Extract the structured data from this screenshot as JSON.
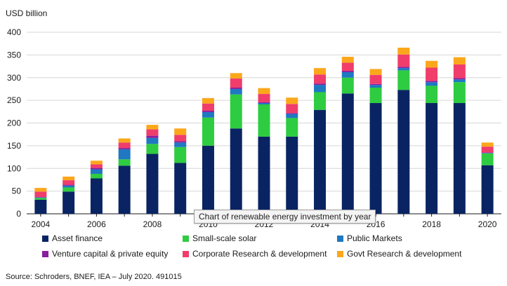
{
  "chart_data": {
    "type": "bar",
    "stacked": true,
    "ylabel": "USD billion",
    "ylim": [
      0,
      400
    ],
    "yticks": [
      "0",
      "50",
      "100",
      "150",
      "200",
      "250",
      "300",
      "350",
      "400"
    ],
    "grid": true,
    "legend_position": "bottom",
    "categories": [
      "2004",
      "2005",
      "2006",
      "2007",
      "2008",
      "2009",
      "2010",
      "2011",
      "2012",
      "2013",
      "2014",
      "2015",
      "2016",
      "2017",
      "2018",
      "2019",
      "2020"
    ],
    "x_tick_labels": [
      "2004",
      "2006",
      "2008",
      "2010",
      "2012",
      "2014",
      "2016",
      "2018",
      "2020"
    ],
    "series": [
      {
        "name": "Asset finance",
        "color": "#0a2463",
        "values": [
          31,
          49,
          78,
          106,
          132,
          112,
          150,
          188,
          170,
          170,
          229,
          265,
          244,
          273,
          244,
          244,
          107
        ]
      },
      {
        "name": "Small-scale solar",
        "color": "#2ecc40",
        "values": [
          4,
          9,
          10,
          14,
          22,
          35,
          62,
          75,
          71,
          41,
          39,
          35,
          34,
          43,
          38,
          46,
          26
        ]
      },
      {
        "name": "Public Markets",
        "color": "#1f78c1",
        "values": [
          1,
          4,
          10,
          22,
          13,
          10,
          12,
          12,
          3,
          9,
          16,
          12,
          6,
          5,
          8,
          6,
          1
        ]
      },
      {
        "name": "Venture capital & private equity",
        "color": "#8a1ea0",
        "values": [
          1,
          2,
          3,
          3,
          5,
          3,
          3,
          3,
          2,
          2,
          3,
          3,
          2,
          3,
          3,
          3,
          1
        ]
      },
      {
        "name": "Corporate Research & development",
        "color": "#f03d6b",
        "values": [
          12,
          10,
          8,
          12,
          14,
          14,
          16,
          20,
          18,
          20,
          20,
          18,
          20,
          27,
          29,
          30,
          13
        ]
      },
      {
        "name": "Govt Research & development",
        "color": "#fba71b",
        "values": [
          8,
          8,
          8,
          9,
          10,
          14,
          12,
          12,
          13,
          14,
          14,
          13,
          13,
          15,
          15,
          16,
          9
        ]
      }
    ]
  },
  "tooltip": "Chart of renewable energy investment by year",
  "source": "Source: Schroders, BNEF, IEA – July 2020. 491015"
}
